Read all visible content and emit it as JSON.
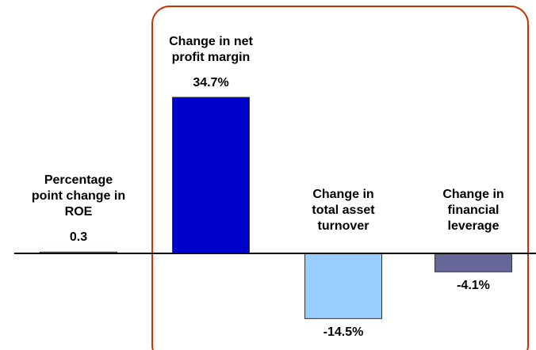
{
  "chart_data": {
    "type": "bar",
    "categories": [
      "Percentage point change in ROE",
      "Change in net profit margin",
      "Change in total asset turnover",
      "Change in financial leverage"
    ],
    "values": [
      0.3,
      34.7,
      -14.5,
      -4.1
    ],
    "value_labels": [
      "0.3",
      "34.7%",
      "-14.5%",
      "-4.1%"
    ],
    "colors": [
      "#ccffff",
      "#0000cc",
      "#99ccff",
      "#666699"
    ]
  }
}
